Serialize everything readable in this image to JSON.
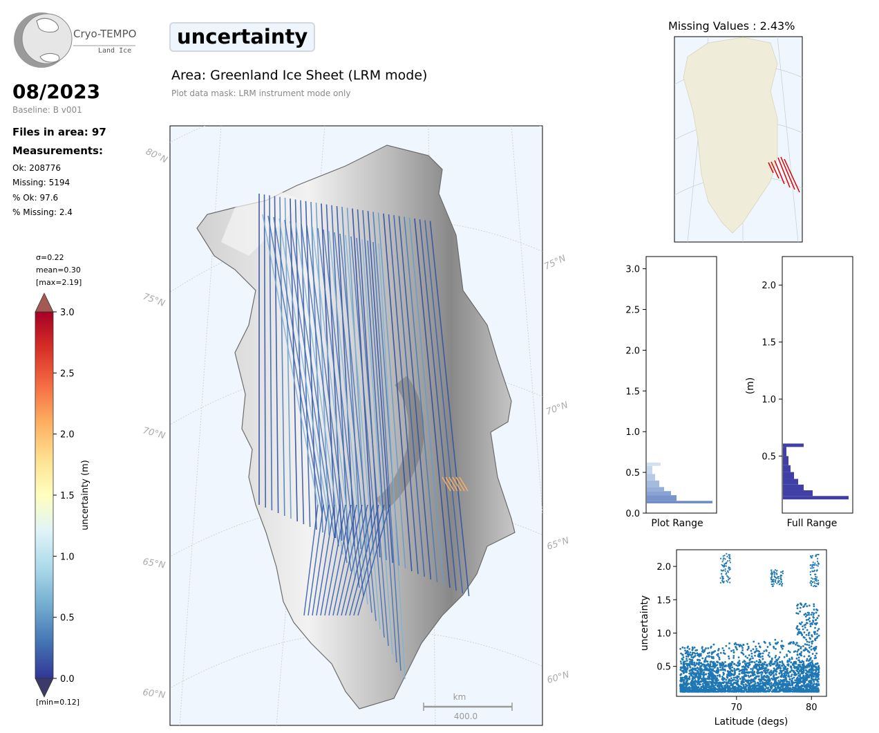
{
  "logo": {
    "name": "Cryo-TEMPO",
    "sub": "Land Ice"
  },
  "header": {
    "date": "08/2023",
    "baseline": "Baseline: B v001",
    "files": "Files in area: 97",
    "measurements_label": "Measurements:",
    "stats": [
      "Ok: 208776",
      "Missing: 5194",
      "% Ok: 97.6",
      "% Missing: 2.4"
    ]
  },
  "main": {
    "variable": "uncertainty",
    "area": "Area: Greenland Ice Sheet (LRM mode)",
    "mask": "Plot data mask: LRM instrument mode only",
    "lat_labels_left": [
      "80°N",
      "75°N",
      "70°N",
      "65°N",
      "60°N"
    ],
    "lat_labels_right": [
      "75°N",
      "70°N",
      "65°N",
      "60°N"
    ],
    "scalebar": {
      "unit": "km",
      "value": "400.0"
    }
  },
  "colorbar": {
    "sigma": "σ=0.22",
    "mean": "mean=0.30",
    "max": "[max=2.19]",
    "min": "[min=0.12]",
    "label": "uncertainty (m)",
    "ticks": [
      "3.0",
      "2.5",
      "2.0",
      "1.5",
      "1.0",
      "0.5",
      "0.0"
    ],
    "colors": [
      "#313695",
      "#4575b4",
      "#74add1",
      "#abd9e9",
      "#e0f3f8",
      "#ffffbf",
      "#fee090",
      "#fdae61",
      "#f46d43",
      "#d73027",
      "#a50026"
    ]
  },
  "missing": {
    "title": "Missing Values : 2.43%",
    "land_color": "#efedda",
    "ocean_color": "#f0f6fd",
    "marker_color": "#dd0000"
  },
  "histograms": {
    "plot_range": {
      "xlabel": "Plot Range",
      "ticks": [
        "0.0",
        "0.5",
        "1.0",
        "1.5",
        "2.0",
        "2.5",
        "3.0"
      ],
      "ymax": 3.15
    },
    "full_range": {
      "xlabel": "Full Range",
      "ylabel": "(m)",
      "ticks": [
        "0.5",
        "1.0",
        "1.5",
        "2.0"
      ],
      "ymin": 0.0,
      "ymax": 2.25
    }
  },
  "chart_data": {
    "type": "scatter",
    "xlabel": "Latitude (degs)",
    "ylabel": "uncertainty",
    "xlim": [
      62,
      82
    ],
    "ylim": [
      0.05,
      2.25
    ],
    "xticks": [
      "70",
      "80"
    ],
    "yticks": [
      "0.5",
      "1.0",
      "1.5",
      "2.0"
    ],
    "color": "#1f77b4",
    "bands": [
      {
        "x": [
          62.5,
          66
        ],
        "y": [
          0.12,
          0.8
        ]
      },
      {
        "x": [
          66,
          72
        ],
        "y": [
          0.12,
          0.85
        ]
      },
      {
        "x": [
          72,
          78
        ],
        "y": [
          0.12,
          0.9
        ]
      },
      {
        "x": [
          78,
          81
        ],
        "y": [
          0.12,
          1.45
        ]
      }
    ],
    "clusters": [
      {
        "x": [
          67.8,
          69.2
        ],
        "y": [
          1.75,
          2.2
        ]
      },
      {
        "x": [
          74.5,
          76.2
        ],
        "y": [
          1.7,
          1.95
        ]
      },
      {
        "x": [
          79.8,
          81
        ],
        "y": [
          1.7,
          2.2
        ]
      }
    ]
  }
}
